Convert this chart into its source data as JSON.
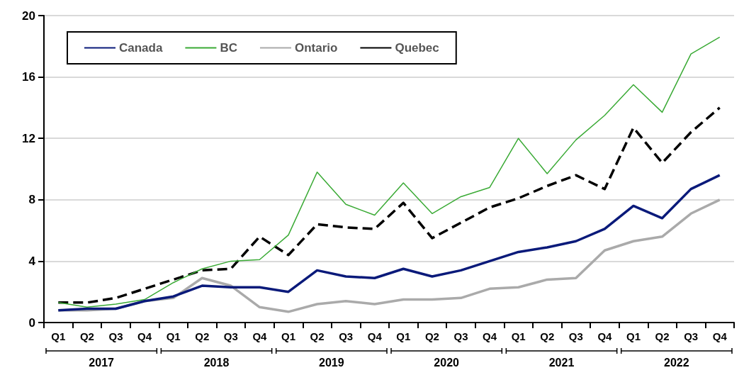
{
  "chart_data": {
    "type": "line",
    "categories": [
      "Q1",
      "Q2",
      "Q3",
      "Q4",
      "Q1",
      "Q2",
      "Q3",
      "Q4",
      "Q1",
      "Q2",
      "Q3",
      "Q4",
      "Q1",
      "Q2",
      "Q3",
      "Q4",
      "Q1",
      "Q2",
      "Q3",
      "Q4",
      "Q1",
      "Q2",
      "Q3",
      "Q4"
    ],
    "series": [
      {
        "name": "Canada",
        "color": "#0a1a7a",
        "line_style": "solid",
        "values": [
          0.8,
          0.9,
          0.9,
          1.4,
          1.7,
          2.4,
          2.3,
          2.3,
          2.0,
          3.4,
          3.0,
          2.9,
          3.5,
          3.0,
          3.4,
          4.0,
          4.6,
          4.9,
          5.3,
          6.1,
          7.6,
          6.8,
          8.7,
          9.6
        ]
      },
      {
        "name": "BC",
        "color": "#3aaa35",
        "line_style": "solid",
        "values": [
          1.3,
          1.0,
          1.2,
          1.5,
          2.6,
          3.5,
          4.0,
          4.1,
          5.7,
          9.8,
          7.7,
          7.0,
          9.1,
          7.1,
          8.2,
          8.8,
          12.0,
          9.7,
          11.9,
          13.5,
          15.5,
          13.7,
          17.5,
          18.6
        ]
      },
      {
        "name": "Ontario",
        "color": "#aaaaaa",
        "line_style": "solid",
        "values": [
          0.8,
          0.8,
          0.9,
          1.4,
          1.6,
          2.9,
          2.4,
          1.0,
          0.7,
          1.2,
          1.4,
          1.2,
          1.5,
          1.5,
          1.6,
          2.2,
          2.3,
          2.8,
          2.9,
          4.7,
          5.3,
          5.6,
          7.1,
          8.0
        ]
      },
      {
        "name": "Quebec",
        "color": "#000000",
        "line_style": "dashed",
        "values": [
          1.3,
          1.3,
          1.6,
          2.2,
          2.8,
          3.4,
          3.5,
          5.6,
          4.4,
          6.4,
          6.2,
          6.1,
          7.8,
          5.5,
          6.5,
          7.5,
          8.1,
          8.9,
          9.6,
          8.7,
          12.7,
          10.4,
          12.4,
          14.0
        ]
      }
    ],
    "annotations": [
      "2017",
      "2018",
      "2019",
      "2020",
      "2021",
      "2022"
    ],
    "ylim": [
      0,
      20
    ],
    "yticks": [
      0,
      4,
      8,
      12,
      16,
      20
    ],
    "grid": "y",
    "legend": "top left",
    "marker": "none"
  }
}
